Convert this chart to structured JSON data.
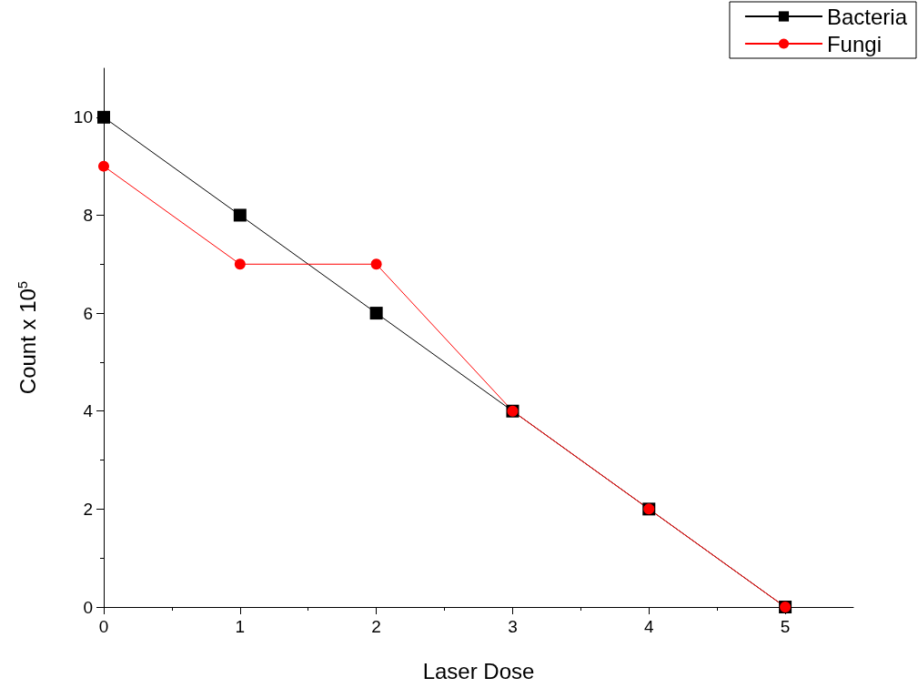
{
  "chart_data": {
    "type": "line",
    "xlabel": "Laser Dose",
    "ylabel": "Count x 10$^{5}$",
    "x": [
      0,
      1,
      2,
      3,
      4,
      5
    ],
    "series": [
      {
        "name": "Bacteria",
        "color": "#000000",
        "marker": "square",
        "values": [
          10,
          8,
          6,
          4,
          2,
          0
        ]
      },
      {
        "name": "Fungi",
        "color": "#ff0000",
        "marker": "circle",
        "values": [
          9,
          7,
          7,
          4,
          2,
          0
        ]
      }
    ],
    "xlim": [
      0,
      5.5
    ],
    "xticks": [
      0,
      1,
      2,
      3,
      4,
      5
    ],
    "ylim": [
      0,
      11
    ],
    "yticks": [
      0,
      2,
      4,
      6,
      8,
      10
    ],
    "grid": false,
    "legend": "top right",
    "line_style": "solid"
  }
}
